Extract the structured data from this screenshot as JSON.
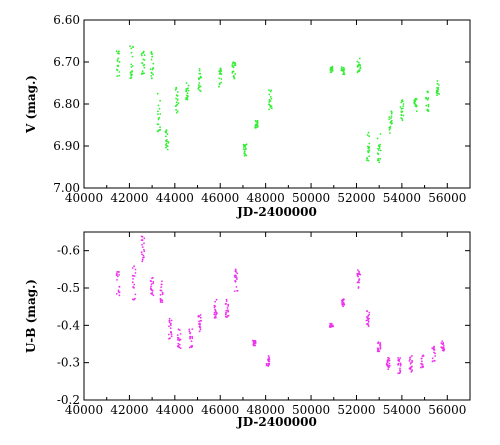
{
  "chart_data": [
    {
      "type": "scatter",
      "title": "",
      "xlabel": "JD-2400000",
      "ylabel": "V (mag.)",
      "xlim": [
        40000,
        57000
      ],
      "ylim": [
        7.0,
        6.6
      ],
      "y_inverted": true,
      "grid": false,
      "color": "#33ee33",
      "x_ticks": [
        40000,
        42000,
        44000,
        46000,
        48000,
        50000,
        52000,
        54000,
        56000
      ],
      "x_tick_labels": [
        "40000",
        "42000",
        "44000",
        "46000",
        "48000",
        "50000",
        "52000",
        "54000",
        "56000"
      ],
      "y_ticks": [
        6.6,
        6.7,
        6.8,
        6.9,
        7.0
      ],
      "y_tick_labels": [
        "6.60",
        "6.70",
        "6.80",
        "6.90",
        "7.00"
      ],
      "groups": [
        {
          "x": 41500,
          "y_min": 6.665,
          "y_max": 6.735
        },
        {
          "x": 42100,
          "y_min": 6.655,
          "y_max": 6.745
        },
        {
          "x": 42600,
          "y_min": 6.66,
          "y_max": 6.73
        },
        {
          "x": 43000,
          "y_min": 6.665,
          "y_max": 6.74
        },
        {
          "x": 43300,
          "y_min": 6.775,
          "y_max": 6.875
        },
        {
          "x": 43650,
          "y_min": 6.86,
          "y_max": 6.91
        },
        {
          "x": 44100,
          "y_min": 6.76,
          "y_max": 6.83
        },
        {
          "x": 44550,
          "y_min": 6.75,
          "y_max": 6.79
        },
        {
          "x": 45100,
          "y_min": 6.715,
          "y_max": 6.77
        },
        {
          "x": 46000,
          "y_min": 6.715,
          "y_max": 6.76
        },
        {
          "x": 46600,
          "y_min": 6.7,
          "y_max": 6.74
        },
        {
          "x": 47100,
          "y_min": 6.895,
          "y_max": 6.925
        },
        {
          "x": 47600,
          "y_min": 6.84,
          "y_max": 6.86
        },
        {
          "x": 48200,
          "y_min": 6.765,
          "y_max": 6.815
        },
        {
          "x": 50900,
          "y_min": 6.71,
          "y_max": 6.725
        },
        {
          "x": 51400,
          "y_min": 6.71,
          "y_max": 6.73
        },
        {
          "x": 52100,
          "y_min": 6.69,
          "y_max": 6.73
        },
        {
          "x": 52500,
          "y_min": 6.865,
          "y_max": 6.935
        },
        {
          "x": 53000,
          "y_min": 6.87,
          "y_max": 6.94
        },
        {
          "x": 53500,
          "y_min": 6.815,
          "y_max": 6.87
        },
        {
          "x": 54000,
          "y_min": 6.79,
          "y_max": 6.84
        },
        {
          "x": 54600,
          "y_min": 6.78,
          "y_max": 6.82
        },
        {
          "x": 55100,
          "y_min": 6.765,
          "y_max": 6.825
        },
        {
          "x": 55600,
          "y_min": 6.745,
          "y_max": 6.78
        }
      ]
    },
    {
      "type": "scatter",
      "title": "",
      "xlabel": "JD-2400000",
      "ylabel": "U-B (mag.)",
      "xlim": [
        40000,
        57000
      ],
      "ylim": [
        -0.2,
        -0.65
      ],
      "y_inverted": true,
      "grid": false,
      "color": "#ee33ee",
      "x_ticks": [
        40000,
        42000,
        44000,
        46000,
        48000,
        50000,
        52000,
        54000,
        56000
      ],
      "x_tick_labels": [
        "40000",
        "42000",
        "44000",
        "46000",
        "48000",
        "50000",
        "52000",
        "54000",
        "56000"
      ],
      "y_ticks": [
        -0.6,
        -0.5,
        -0.4,
        -0.3,
        -0.2
      ],
      "y_tick_labels": [
        "-0.6",
        "-0.5",
        "-0.4",
        "-0.3",
        "-0.2"
      ],
      "groups": [
        {
          "x": 41500,
          "y_min": -0.545,
          "y_max": -0.48
        },
        {
          "x": 42200,
          "y_min": -0.56,
          "y_max": -0.465
        },
        {
          "x": 42600,
          "y_min": -0.64,
          "y_max": -0.57
        },
        {
          "x": 43000,
          "y_min": -0.53,
          "y_max": -0.48
        },
        {
          "x": 43400,
          "y_min": -0.52,
          "y_max": -0.46
        },
        {
          "x": 43800,
          "y_min": -0.42,
          "y_max": -0.36
        },
        {
          "x": 44200,
          "y_min": -0.39,
          "y_max": -0.335
        },
        {
          "x": 44700,
          "y_min": -0.39,
          "y_max": -0.34
        },
        {
          "x": 45100,
          "y_min": -0.43,
          "y_max": -0.38
        },
        {
          "x": 45800,
          "y_min": -0.47,
          "y_max": -0.42
        },
        {
          "x": 46300,
          "y_min": -0.47,
          "y_max": -0.42
        },
        {
          "x": 46700,
          "y_min": -0.55,
          "y_max": -0.49
        },
        {
          "x": 47500,
          "y_min": -0.36,
          "y_max": -0.345
        },
        {
          "x": 48100,
          "y_min": -0.32,
          "y_max": -0.29
        },
        {
          "x": 50900,
          "y_min": -0.405,
          "y_max": -0.395
        },
        {
          "x": 51400,
          "y_min": -0.47,
          "y_max": -0.45
        },
        {
          "x": 52100,
          "y_min": -0.55,
          "y_max": -0.5
        },
        {
          "x": 52500,
          "y_min": -0.44,
          "y_max": -0.39
        },
        {
          "x": 53000,
          "y_min": -0.355,
          "y_max": -0.33
        },
        {
          "x": 53400,
          "y_min": -0.315,
          "y_max": -0.28
        },
        {
          "x": 53900,
          "y_min": -0.32,
          "y_max": -0.27
        },
        {
          "x": 54400,
          "y_min": -0.32,
          "y_max": -0.275
        },
        {
          "x": 54900,
          "y_min": -0.32,
          "y_max": -0.285
        },
        {
          "x": 55400,
          "y_min": -0.345,
          "y_max": -0.3
        },
        {
          "x": 55800,
          "y_min": -0.36,
          "y_max": -0.33
        }
      ]
    }
  ]
}
